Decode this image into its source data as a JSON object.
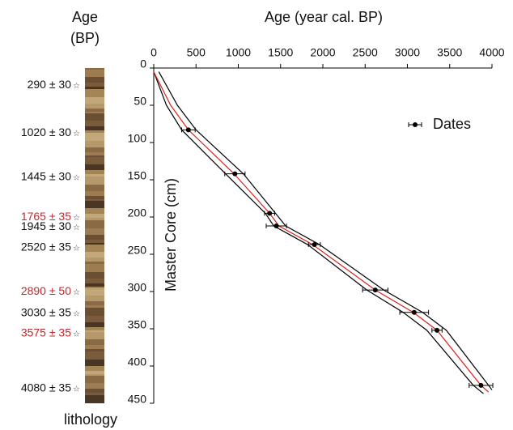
{
  "chart_data": {
    "type": "line",
    "title": "Age (year cal. BP)",
    "ylabel": "Master Core (cm)",
    "xlim": [
      0,
      4000
    ],
    "xticks": [
      0,
      500,
      1000,
      1500,
      2000,
      2500,
      3000,
      3500,
      4000
    ],
    "ylim": [
      0,
      450
    ],
    "yticks": [
      0,
      50,
      100,
      150,
      200,
      250,
      300,
      350,
      400,
      450
    ],
    "y_inverted": true,
    "legend": "upper right",
    "series": [
      {
        "name": "Dates",
        "type": "scatter",
        "color": "#000000",
        "x": [
          410,
          960,
          1370,
          1450,
          1900,
          2620,
          3080,
          3350,
          3870
        ],
        "values": [
          83,
          142,
          195,
          212,
          237,
          298,
          328,
          352,
          426
        ],
        "xerr": [
          80,
          120,
          60,
          120,
          70,
          150,
          170,
          60,
          140
        ]
      },
      {
        "color": "#000000",
        "x": [
          0,
          150,
          330,
          850,
          1320,
          1420,
          1820,
          2520,
          2950,
          3230,
          3780,
          3900
        ],
        "values": [
          5,
          50,
          83,
          142,
          195,
          212,
          237,
          298,
          328,
          352,
          426,
          437
        ]
      },
      {
        "color": "#e0201b",
        "x": [
          0,
          200,
          410,
          950,
          1370,
          1480,
          1880,
          2620,
          3070,
          3350,
          3870,
          3960
        ],
        "values": [
          5,
          50,
          83,
          142,
          195,
          212,
          237,
          298,
          328,
          352,
          426,
          435
        ]
      },
      {
        "color": "#000000",
        "x": [
          60,
          280,
          500,
          1060,
          1440,
          1560,
          1960,
          2720,
          3180,
          3460,
          3960,
          4000
        ],
        "values": [
          5,
          50,
          83,
          142,
          195,
          212,
          237,
          298,
          328,
          352,
          426,
          432
        ]
      }
    ],
    "core_header": [
      "Age",
      "(BP)"
    ],
    "core_footer": "lithology",
    "samples": [
      {
        "label": "290 ± 30",
        "depth": 19,
        "color": "#111111"
      },
      {
        "label": "1020 ± 30",
        "depth": 83,
        "color": "#111111"
      },
      {
        "label": "1445 ± 30",
        "depth": 142,
        "color": "#111111"
      },
      {
        "label": "1765 ± 35",
        "depth": 196,
        "color": "#c0282e"
      },
      {
        "label": "1945 ± 30",
        "depth": 209,
        "color": "#111111"
      },
      {
        "label": "2520 ± 35",
        "depth": 237,
        "color": "#111111"
      },
      {
        "label": "2890 ± 50",
        "depth": 296,
        "color": "#c0282e"
      },
      {
        "label": "3030 ± 35",
        "depth": 325,
        "color": "#111111"
      },
      {
        "label": "3575 ± 35",
        "depth": 352,
        "color": "#c0282e"
      },
      {
        "label": "4080 ± 35",
        "depth": 426,
        "color": "#111111"
      }
    ]
  }
}
